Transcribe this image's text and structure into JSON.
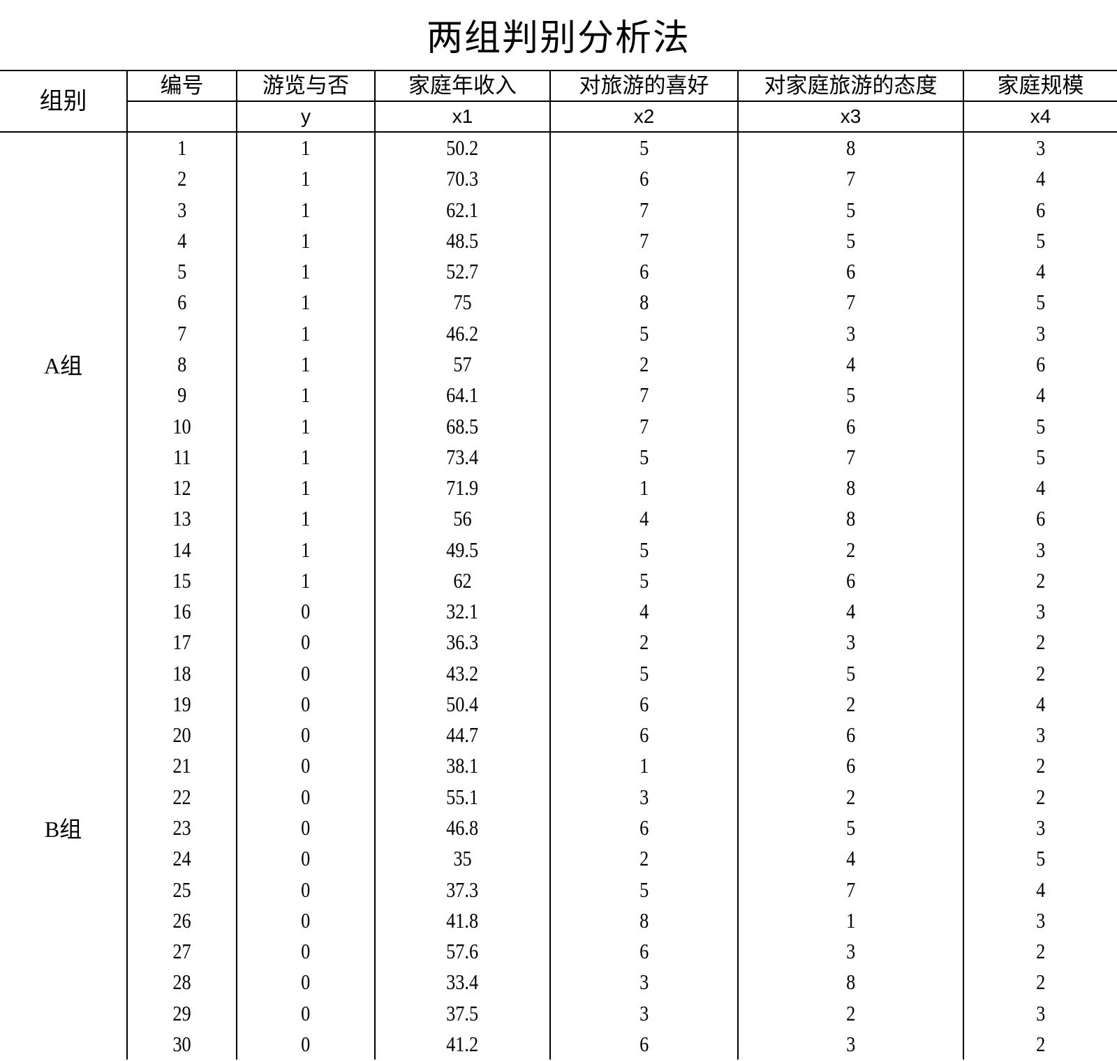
{
  "title": "两组判别分析法",
  "header": {
    "group": "组别",
    "columns": [
      "编号",
      "游览与否",
      "家庭年收入",
      "对旅游的喜好",
      "对家庭旅游的态度",
      "家庭规模"
    ],
    "variables": [
      "",
      "y",
      "x1",
      "x2",
      "x3",
      "x4"
    ]
  },
  "groups": [
    {
      "label": "A组",
      "rows": [
        [
          "1",
          "1",
          "50.2",
          "5",
          "8",
          "3"
        ],
        [
          "2",
          "1",
          "70.3",
          "6",
          "7",
          "4"
        ],
        [
          "3",
          "1",
          "62.1",
          "7",
          "5",
          "6"
        ],
        [
          "4",
          "1",
          "48.5",
          "7",
          "5",
          "5"
        ],
        [
          "5",
          "1",
          "52.7",
          "6",
          "6",
          "4"
        ],
        [
          "6",
          "1",
          "75",
          "8",
          "7",
          "5"
        ],
        [
          "7",
          "1",
          "46.2",
          "5",
          "3",
          "3"
        ],
        [
          "8",
          "1",
          "57",
          "2",
          "4",
          "6"
        ],
        [
          "9",
          "1",
          "64.1",
          "7",
          "5",
          "4"
        ],
        [
          "10",
          "1",
          "68.5",
          "7",
          "6",
          "5"
        ],
        [
          "11",
          "1",
          "73.4",
          "5",
          "7",
          "5"
        ],
        [
          "12",
          "1",
          "71.9",
          "1",
          "8",
          "4"
        ],
        [
          "13",
          "1",
          "56",
          "4",
          "8",
          "6"
        ],
        [
          "14",
          "1",
          "49.5",
          "5",
          "2",
          "3"
        ],
        [
          "15",
          "1",
          "62",
          "5",
          "6",
          "2"
        ]
      ]
    },
    {
      "label": "B组",
      "rows": [
        [
          "16",
          "0",
          "32.1",
          "4",
          "4",
          "3"
        ],
        [
          "17",
          "0",
          "36.3",
          "2",
          "3",
          "2"
        ],
        [
          "18",
          "0",
          "43.2",
          "5",
          "5",
          "2"
        ],
        [
          "19",
          "0",
          "50.4",
          "6",
          "2",
          "4"
        ],
        [
          "20",
          "0",
          "44.7",
          "6",
          "6",
          "3"
        ],
        [
          "21",
          "0",
          "38.1",
          "1",
          "6",
          "2"
        ],
        [
          "22",
          "0",
          "55.1",
          "3",
          "2",
          "2"
        ],
        [
          "23",
          "0",
          "46.8",
          "6",
          "5",
          "3"
        ],
        [
          "24",
          "0",
          "35",
          "2",
          "4",
          "5"
        ],
        [
          "25",
          "0",
          "37.3",
          "5",
          "7",
          "4"
        ],
        [
          "26",
          "0",
          "41.8",
          "8",
          "1",
          "3"
        ],
        [
          "27",
          "0",
          "57.6",
          "6",
          "3",
          "2"
        ],
        [
          "28",
          "0",
          "33.4",
          "3",
          "8",
          "2"
        ],
        [
          "29",
          "0",
          "37.5",
          "3",
          "2",
          "3"
        ],
        [
          "30",
          "0",
          "41.2",
          "6",
          "3",
          "2"
        ]
      ]
    }
  ]
}
